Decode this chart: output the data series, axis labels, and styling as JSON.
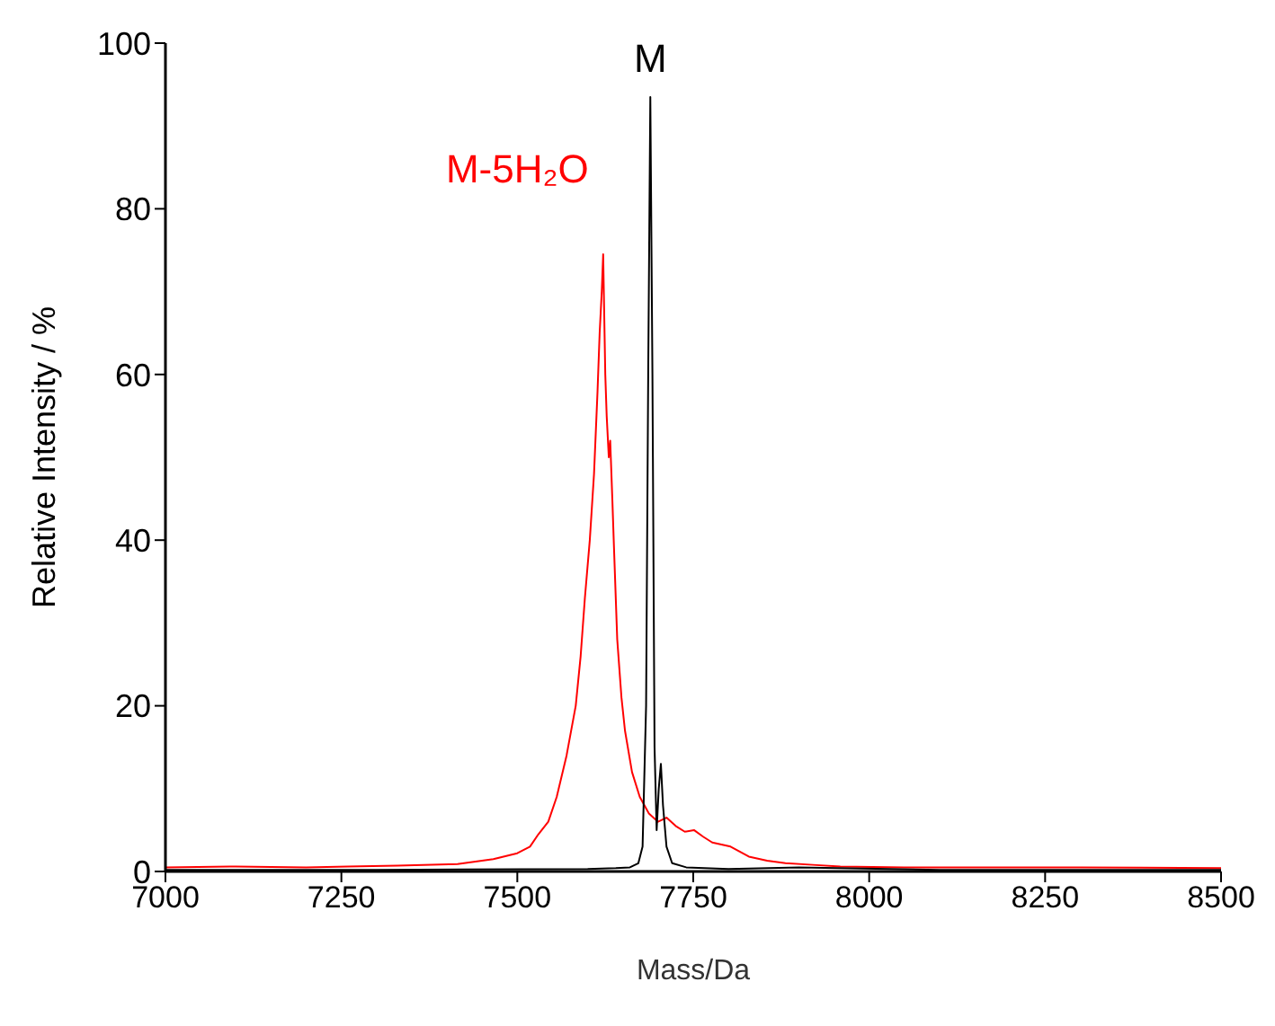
{
  "chart_data": {
    "type": "line",
    "xlabel": "Mass/Da",
    "ylabel": "Relative Intensity / %",
    "xlim": [
      7000,
      8500
    ],
    "xticks": [
      7000,
      7250,
      7500,
      7750,
      8000,
      8250,
      8500
    ],
    "ylim": [
      0,
      100
    ],
    "yticks": [
      0,
      20,
      40,
      60,
      80,
      100
    ],
    "grid": false,
    "legend": false,
    "marker": "none",
    "line_style": "solid",
    "series": [
      {
        "color": "#ff0000",
        "x": [
          7000,
          7100,
          7200,
          7259,
          7330,
          7415,
          7466,
          7500,
          7518,
          7530,
          7544,
          7556,
          7570,
          7583,
          7590,
          7596,
          7603,
          7609,
          7614,
          7617,
          7620,
          7622,
          7625,
          7627,
          7630,
          7632,
          7635,
          7637,
          7642,
          7648,
          7653,
          7663,
          7674,
          7687,
          7700,
          7712,
          7725,
          7738,
          7751,
          7764,
          7777,
          7803,
          7829,
          7855,
          7881,
          7920,
          7959,
          8050,
          8166,
          8300,
          8500
        ],
        "values": [
          0.5,
          0.6,
          0.5,
          0.6,
          0.7,
          0.9,
          1.5,
          2.2,
          3,
          4.5,
          6,
          9,
          14,
          20,
          26,
          33,
          40,
          48,
          58,
          65,
          70,
          74.5,
          60,
          55,
          50,
          52,
          45,
          40,
          28,
          21,
          17,
          12,
          9,
          7,
          6,
          6.5,
          5.5,
          4.8,
          5,
          4.2,
          3.5,
          3,
          1.8,
          1.3,
          1,
          0.8,
          0.6,
          0.5,
          0.5,
          0.5,
          0.4
        ]
      },
      {
        "color": "#000000",
        "x": [
          7000,
          7300,
          7600,
          7640,
          7660,
          7672,
          7678,
          7683,
          7686,
          7689,
          7692,
          7695,
          7698,
          7701,
          7704,
          7707,
          7712,
          7720,
          7740,
          7800,
          7900,
          8100,
          8500
        ],
        "values": [
          0.2,
          0.2,
          0.3,
          0.4,
          0.5,
          1,
          3,
          20,
          60,
          93.5,
          60,
          15,
          5,
          10,
          13,
          8,
          3,
          1,
          0.5,
          0.3,
          0.5,
          0.2,
          0.2
        ]
      }
    ],
    "annotations": [
      "M-5H₂O",
      "M"
    ]
  }
}
